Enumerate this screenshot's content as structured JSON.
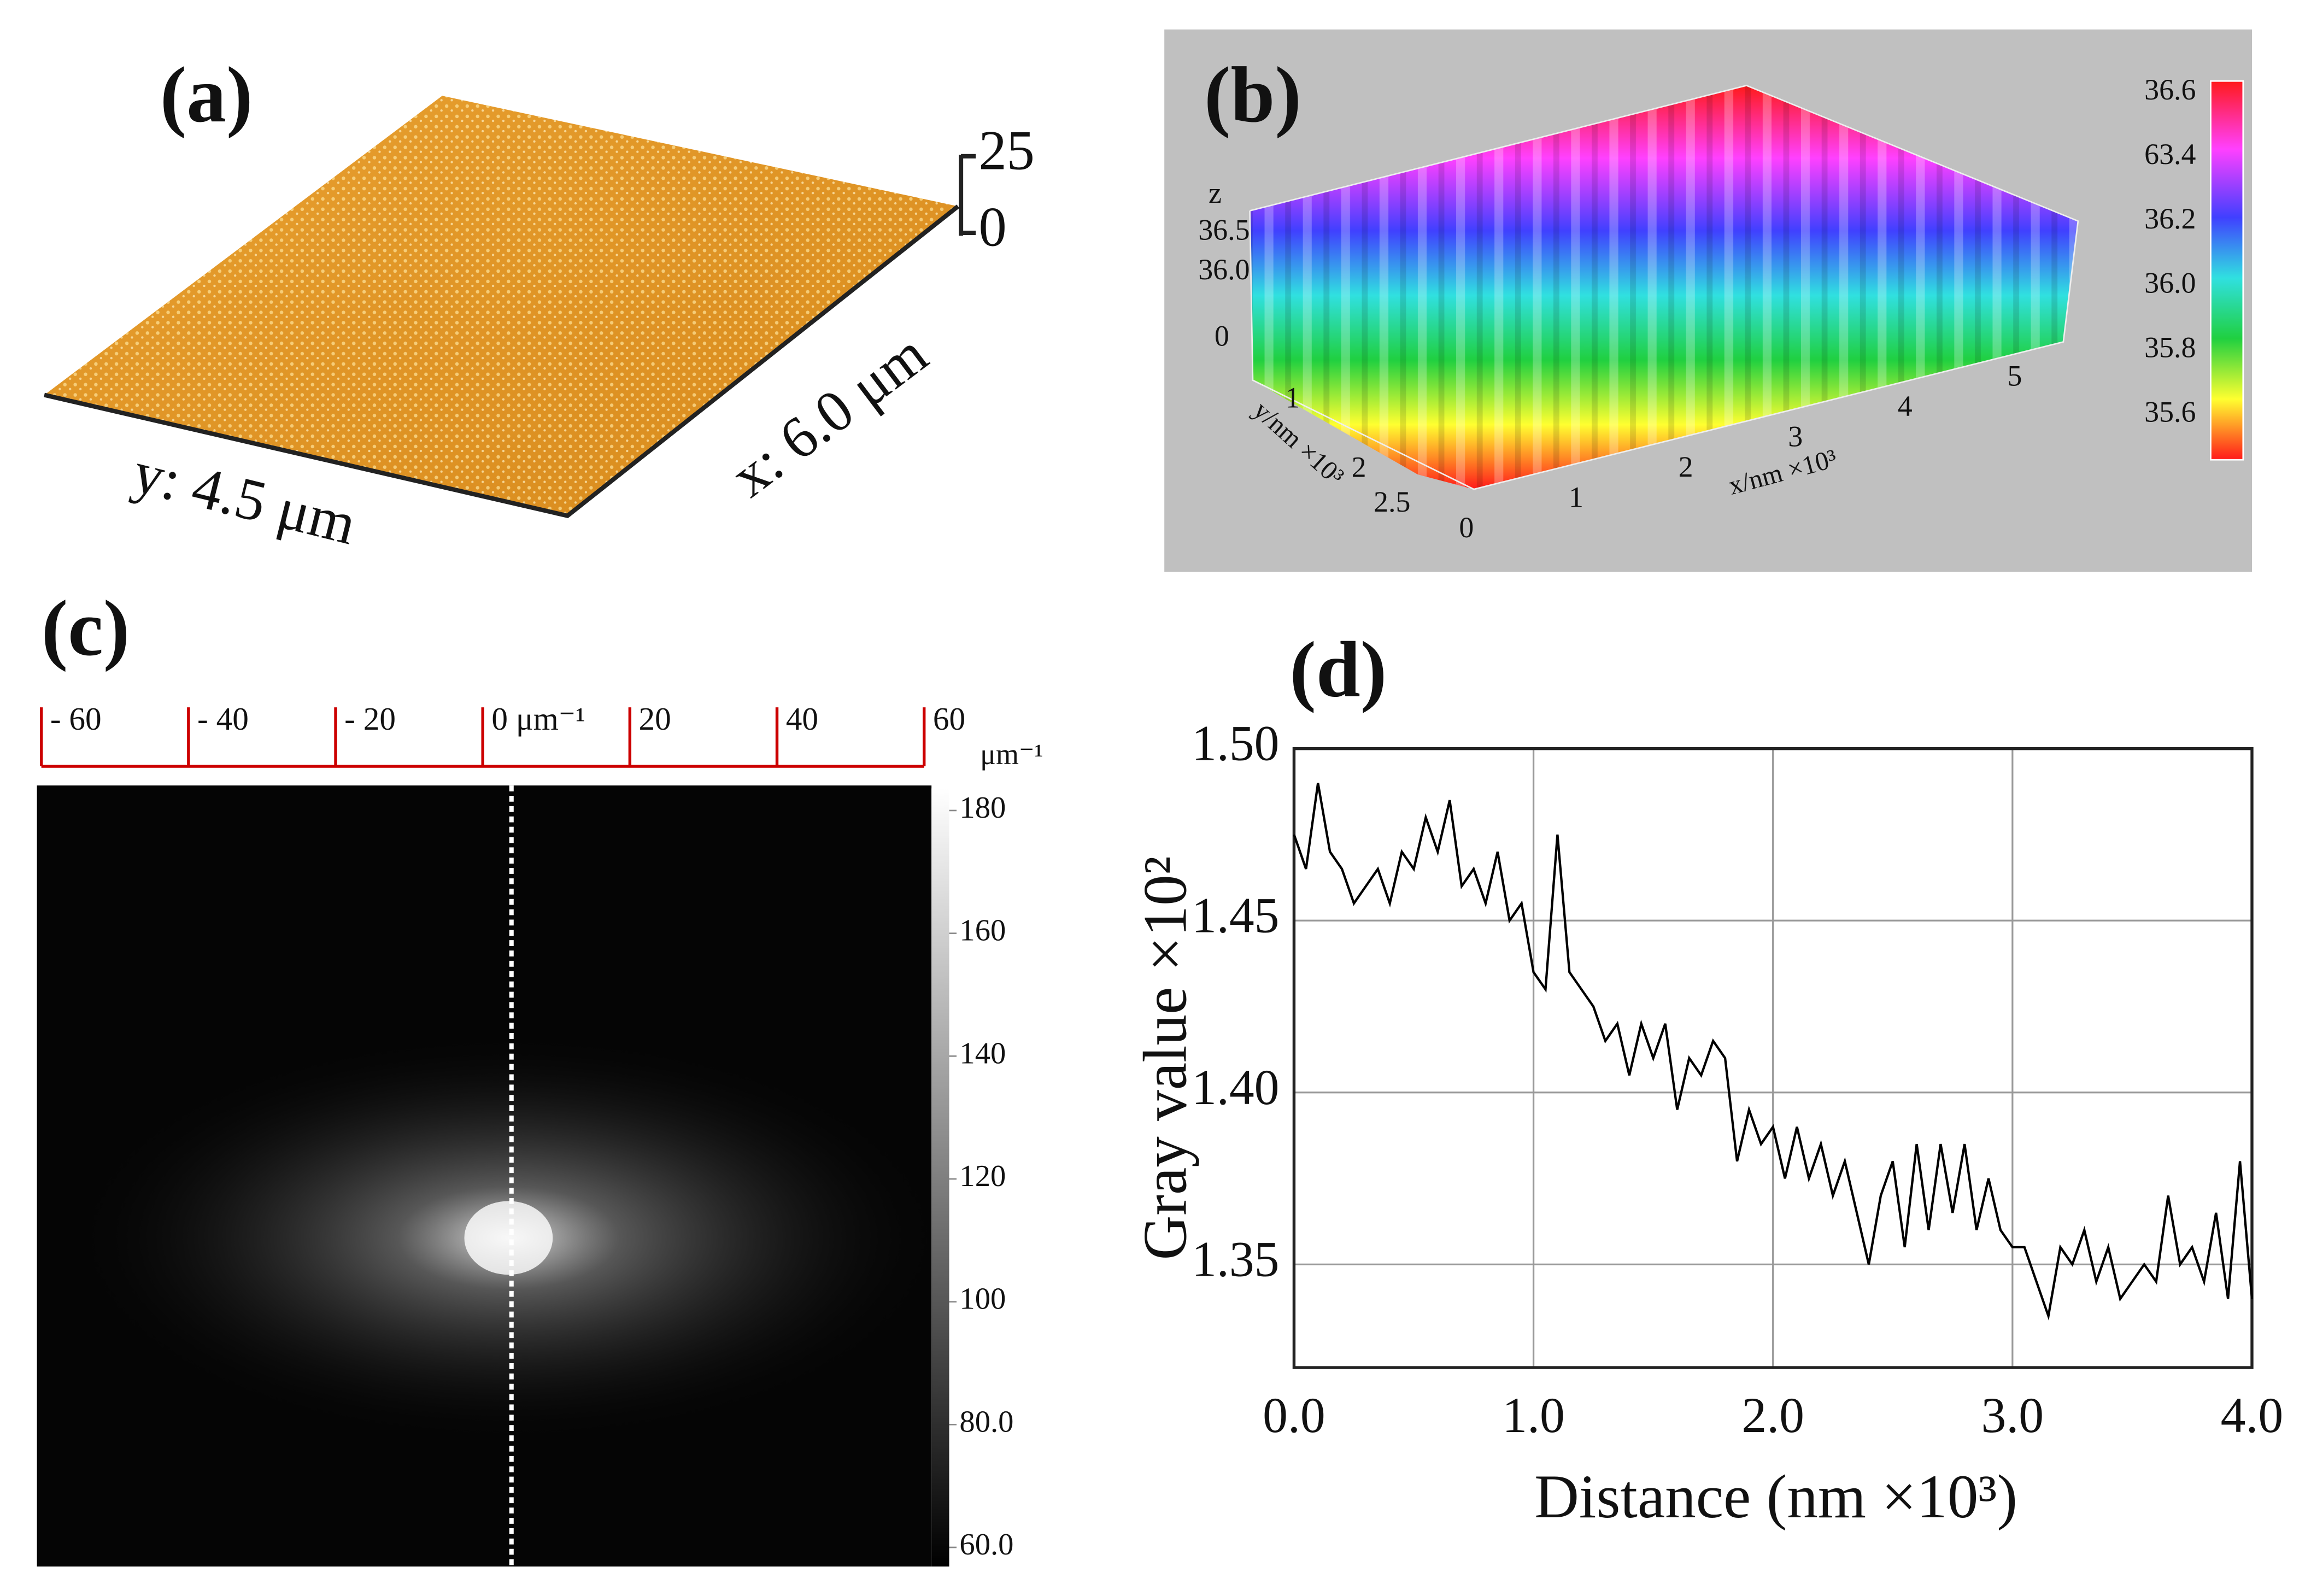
{
  "chart_data": [
    {
      "type": "surface",
      "panel_label": "(a)",
      "x_label": "x: 6.0 μm",
      "y_label": "y: 4.5 μm",
      "zlim": [
        0,
        25
      ],
      "zticks": [
        0,
        25
      ]
    },
    {
      "type": "mesh",
      "panel_label": "(b)",
      "z_label": "z",
      "zticks": [
        {
          "value": 36.5,
          "label": "36.5"
        },
        {
          "value": 36.0,
          "label": "36.0"
        },
        0
      ],
      "x_label": "x/nm ×10³",
      "xticks": [
        0,
        1,
        2,
        3,
        4,
        5
      ],
      "y_label": "y/nm ×10³",
      "yticks": [
        1,
        2,
        2.5
      ],
      "colorbar_labels": [
        "36.6",
        "63.4",
        "36.2",
        "36.0",
        "35.8",
        "35.6"
      ]
    },
    {
      "type": "image",
      "panel_label": "(c)",
      "xlim": [
        -60,
        60
      ],
      "xticks": [
        {
          "value": -60,
          "label": "- 60"
        },
        {
          "value": -40,
          "label": "- 40"
        },
        {
          "value": -20,
          "label": "- 20"
        },
        {
          "value": 0,
          "label": "0 μm⁻¹"
        },
        20,
        40,
        60
      ],
      "x_unit": "μm⁻¹",
      "clim": [
        60,
        180
      ],
      "cticks": [
        180,
        160,
        140,
        120,
        100,
        {
          "value": 80,
          "label": "80.0"
        },
        {
          "value": 60,
          "label": "60.0"
        }
      ]
    },
    {
      "type": "line",
      "panel_label": "(d)",
      "x_label": "Distance (nm ×10³)",
      "y_label": "Gray value ×10²",
      "xlim": [
        0,
        4
      ],
      "xticks": [
        {
          "value": 0,
          "label": "0.0"
        },
        {
          "value": 1,
          "label": "1.0"
        },
        {
          "value": 2,
          "label": "2.0"
        },
        {
          "value": 3,
          "label": "3.0"
        },
        {
          "value": 4,
          "label": "4.0"
        }
      ],
      "ylim": [
        1.32,
        1.5
      ],
      "yticks": [
        1.35,
        {
          "value": 1.4,
          "label": "1.40"
        },
        1.45,
        {
          "value": 1.5,
          "label": "1.50"
        }
      ],
      "grid": true,
      "color": "#000000",
      "x": [
        0,
        0.05,
        0.1,
        0.15,
        0.2,
        0.25,
        0.3,
        0.35,
        0.4,
        0.45,
        0.5,
        0.55,
        0.6,
        0.65,
        0.7,
        0.75,
        0.8,
        0.85,
        0.9,
        0.95,
        1,
        1.05,
        1.1,
        1.15,
        1.2,
        1.25,
        1.3,
        1.35,
        1.4,
        1.45,
        1.5,
        1.55,
        1.6,
        1.65,
        1.7,
        1.75,
        1.8,
        1.85,
        1.9,
        1.95,
        2,
        2.05,
        2.1,
        2.15,
        2.2,
        2.25,
        2.3,
        2.35,
        2.4,
        2.45,
        2.5,
        2.55,
        2.6,
        2.65,
        2.7,
        2.75,
        2.8,
        2.85,
        2.9,
        2.95,
        3,
        3.05,
        3.1,
        3.15,
        3.2,
        3.25,
        3.3,
        3.35,
        3.4,
        3.45,
        3.5,
        3.55,
        3.6,
        3.65,
        3.7,
        3.75,
        3.8,
        3.85,
        3.9,
        3.95,
        4
      ],
      "values": [
        1.475,
        1.465,
        1.49,
        1.47,
        1.465,
        1.455,
        1.46,
        1.465,
        1.455,
        1.47,
        1.465,
        1.48,
        1.47,
        1.485,
        1.46,
        1.465,
        1.455,
        1.47,
        1.45,
        1.455,
        1.435,
        1.43,
        1.475,
        1.435,
        1.43,
        1.425,
        1.415,
        1.42,
        1.405,
        1.42,
        1.41,
        1.42,
        1.395,
        1.41,
        1.405,
        1.415,
        1.41,
        1.38,
        1.395,
        1.385,
        1.39,
        1.375,
        1.39,
        1.375,
        1.385,
        1.37,
        1.38,
        1.365,
        1.35,
        1.37,
        1.38,
        1.355,
        1.385,
        1.36,
        1.385,
        1.365,
        1.385,
        1.36,
        1.375,
        1.36,
        1.355,
        1.355,
        1.345,
        1.335,
        1.355,
        1.35,
        1.36,
        1.345,
        1.355,
        1.34,
        1.345,
        1.35,
        1.345,
        1.37,
        1.35,
        1.355,
        1.345,
        1.365,
        1.34,
        1.38,
        1.34
      ]
    }
  ]
}
